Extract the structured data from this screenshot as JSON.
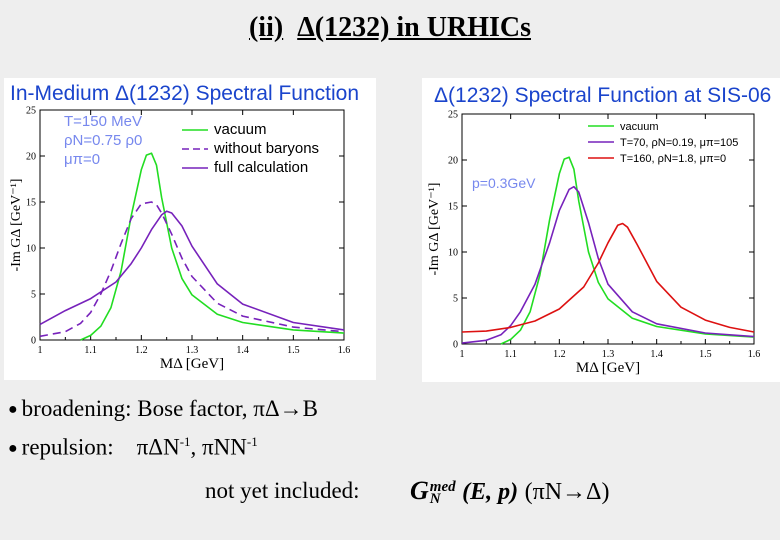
{
  "slide": {
    "title_prefix": "(ii)",
    "title_main": "Δ(1232) in URHICs",
    "bullet1_label": "broadening:",
    "bullet1_text": "Bose factor, πΔ→B",
    "bullet2_label": "repulsion:",
    "bullet2_a": "πΔN",
    "bullet2_sep": ", ",
    "bullet2_b": "πNN",
    "bullet2_sup": "-1",
    "note_label": "not yet included:",
    "formula_g": "G",
    "formula_sub": "N",
    "formula_sup": "med",
    "formula_args": "(E, p)",
    "formula_reaction": "(πN→Δ)"
  },
  "colors": {
    "green": "#22dd22",
    "purple": "#7722bb",
    "red": "#dd1111",
    "title_blue": "#1a44cc",
    "annot_blue": "#7788ee"
  },
  "chart_data": [
    {
      "type": "line",
      "title": "In-Medium Δ(1232) Spectral Function",
      "xlabel": "MΔ [GeV]",
      "ylabel": "-Im GΔ [GeV⁻¹]",
      "xlim": [
        1.0,
        1.6
      ],
      "ylim": [
        0,
        25
      ],
      "xticks": [
        "1",
        "1.1",
        "1.2",
        "1.3",
        "1.4",
        "1.5",
        "1.6"
      ],
      "yticks": [
        "0",
        "5",
        "10",
        "15",
        "20",
        "25"
      ],
      "annotations": [
        "T=150 MeV",
        "ρN=0.75 ρ0",
        "μπ=0"
      ],
      "legend_position": "top-right",
      "legend": [
        "vacuum",
        "without baryons",
        "full calculation"
      ],
      "series": [
        {
          "name": "vacuum",
          "color": "green",
          "dash": "solid",
          "x": [
            1.08,
            1.1,
            1.12,
            1.14,
            1.16,
            1.18,
            1.2,
            1.21,
            1.22,
            1.23,
            1.24,
            1.26,
            1.28,
            1.3,
            1.35,
            1.4,
            1.5,
            1.6
          ],
          "y": [
            0,
            0.5,
            1.5,
            3.5,
            7.5,
            13.5,
            18.5,
            20.1,
            20.3,
            19.0,
            15.5,
            10.0,
            6.7,
            4.9,
            2.8,
            1.9,
            1.1,
            0.75
          ]
        },
        {
          "name": "without baryons",
          "color": "purple",
          "dash": "dashed",
          "x": [
            1.0,
            1.05,
            1.08,
            1.1,
            1.12,
            1.14,
            1.16,
            1.18,
            1.2,
            1.22,
            1.23,
            1.24,
            1.26,
            1.28,
            1.3,
            1.35,
            1.4,
            1.5,
            1.6
          ],
          "y": [
            0.4,
            0.9,
            1.8,
            3.0,
            5.0,
            7.5,
            10.5,
            13.2,
            14.8,
            15.0,
            14.7,
            13.8,
            11.5,
            8.9,
            6.9,
            4.0,
            2.6,
            1.4,
            0.9
          ]
        },
        {
          "name": "full calculation",
          "color": "purple",
          "dash": "solid",
          "x": [
            1.0,
            1.05,
            1.1,
            1.15,
            1.18,
            1.2,
            1.22,
            1.24,
            1.25,
            1.26,
            1.28,
            1.3,
            1.35,
            1.4,
            1.5,
            1.6
          ],
          "y": [
            1.7,
            3.2,
            4.5,
            6.3,
            8.3,
            10.0,
            12.0,
            13.6,
            14.0,
            13.8,
            12.4,
            10.2,
            6.1,
            3.9,
            1.9,
            1.1
          ]
        }
      ]
    },
    {
      "type": "line",
      "title": "Δ(1232) Spectral Function at SIS-06",
      "xlabel": "MΔ [GeV]",
      "ylabel": "-Im GΔ [GeV⁻¹]",
      "xlim": [
        1.0,
        1.6
      ],
      "ylim": [
        0,
        25
      ],
      "xticks": [
        "1",
        "1.1",
        "1.2",
        "1.3",
        "1.4",
        "1.5",
        "1.6"
      ],
      "yticks": [
        "0",
        "5",
        "10",
        "15",
        "20",
        "25"
      ],
      "annotations": [
        "p=0.3GeV"
      ],
      "legend_position": "top-right",
      "legend": [
        "vacuum",
        "T=70, ρN=0.19, μπ=105",
        "T=160, ρN=1.8, μπ=0"
      ],
      "series": [
        {
          "name": "vacuum",
          "color": "green",
          "dash": "solid",
          "x": [
            1.08,
            1.1,
            1.12,
            1.14,
            1.16,
            1.18,
            1.2,
            1.21,
            1.22,
            1.23,
            1.24,
            1.26,
            1.28,
            1.3,
            1.35,
            1.4,
            1.5,
            1.6
          ],
          "y": [
            0,
            0.5,
            1.5,
            3.5,
            7.5,
            13.5,
            18.5,
            20.1,
            20.3,
            19.0,
            15.5,
            10.0,
            6.7,
            4.9,
            2.8,
            1.9,
            1.1,
            0.75
          ]
        },
        {
          "name": "T=70, ρN=0.19, μπ=105",
          "color": "purple",
          "dash": "solid",
          "x": [
            1.0,
            1.05,
            1.08,
            1.1,
            1.12,
            1.15,
            1.18,
            1.2,
            1.22,
            1.23,
            1.24,
            1.26,
            1.28,
            1.3,
            1.35,
            1.4,
            1.5,
            1.6
          ],
          "y": [
            0.1,
            0.4,
            1.0,
            2.0,
            3.5,
            6.5,
            11.0,
            14.5,
            16.8,
            17.1,
            16.5,
            13.2,
            9.3,
            6.5,
            3.5,
            2.2,
            1.2,
            0.8
          ]
        },
        {
          "name": "T=160, ρN=1.8, μπ=0",
          "color": "red",
          "dash": "solid",
          "x": [
            1.0,
            1.05,
            1.1,
            1.15,
            1.2,
            1.25,
            1.28,
            1.3,
            1.32,
            1.33,
            1.34,
            1.36,
            1.4,
            1.45,
            1.5,
            1.55,
            1.6
          ],
          "y": [
            1.3,
            1.4,
            1.8,
            2.5,
            3.8,
            6.2,
            8.8,
            11.0,
            12.9,
            13.1,
            12.7,
            10.8,
            6.8,
            4.0,
            2.6,
            1.8,
            1.3
          ]
        }
      ]
    }
  ]
}
